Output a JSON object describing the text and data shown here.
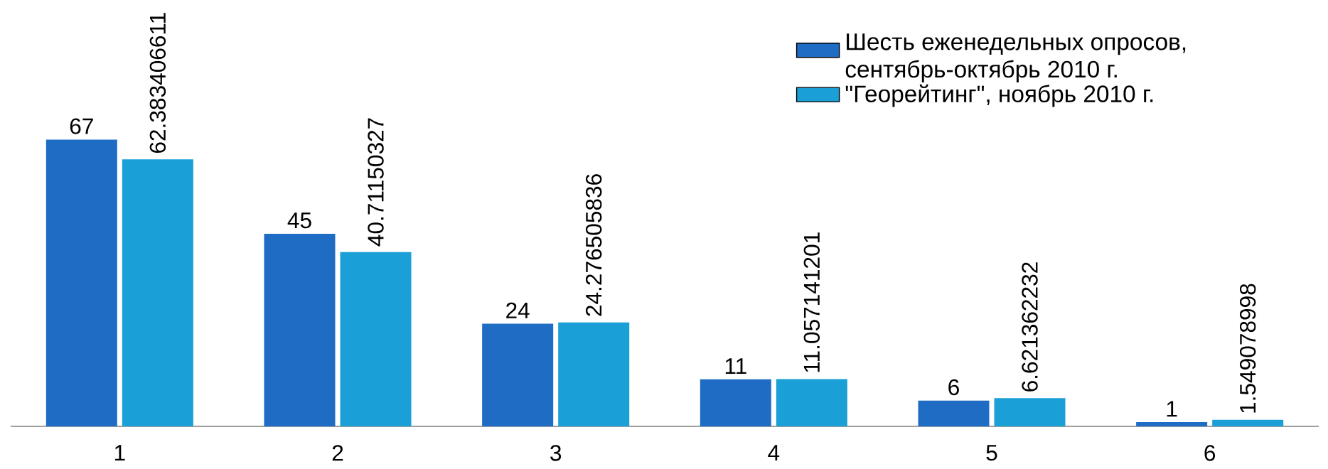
{
  "chart_data": {
    "type": "bar",
    "categories": [
      "1",
      "2",
      "3",
      "4",
      "5",
      "6"
    ],
    "series": [
      {
        "name": "Шесть еженедельных опросов, сентябрь-октябрь 2010 г.",
        "color": "#1f6cc4",
        "values": [
          67,
          45,
          24,
          11,
          6,
          1
        ]
      },
      {
        "name": "\"Георейтинг\", ноябрь 2010 г.",
        "color": "#1a9fd6",
        "values": [
          62.383406611,
          40.71150327,
          24.276505836,
          11.057141201,
          6.621362232,
          1.549078998
        ]
      }
    ],
    "data_labels": true,
    "legend": "top right"
  }
}
